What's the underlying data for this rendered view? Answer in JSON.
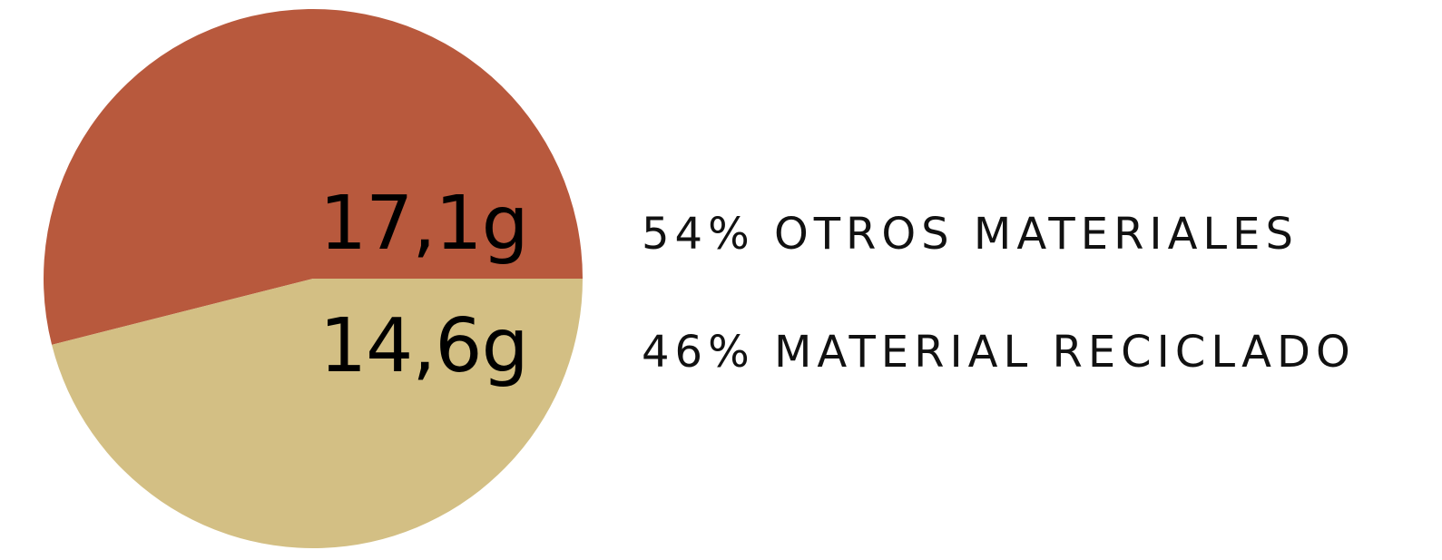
{
  "chart_data": {
    "type": "pie",
    "title": "",
    "slices": [
      {
        "label": "OTROS MATERIALES",
        "value": 17.1,
        "value_text": "17,1g",
        "percent_text": "54%",
        "color": "#b8593d"
      },
      {
        "label": "MATERIAL RECICLADO",
        "value": 14.6,
        "value_text": "14,6g",
        "percent_text": "46%",
        "color": "#d3bf84"
      }
    ],
    "legend": {
      "placement": "right",
      "items": [
        "54% OTROS MATERIALES",
        "46% MATERIAL RECICLADO"
      ]
    }
  }
}
